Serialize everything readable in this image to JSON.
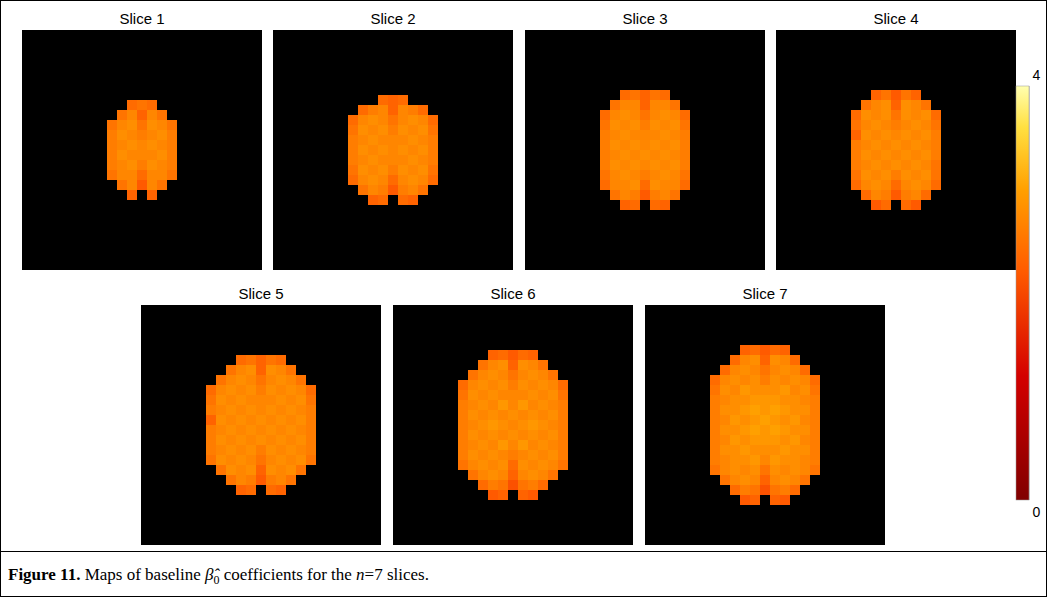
{
  "chart_data": {
    "type": "heatmap",
    "panels": [
      {
        "title": "Slice 1",
        "cells": [
          [
            null,
            null,
            2.4,
            2.5,
            2.4,
            null,
            null
          ],
          [
            null,
            2.5,
            2.7,
            2.3,
            2.7,
            2.5,
            null
          ],
          [
            2.5,
            2.7,
            2.8,
            2.5,
            2.8,
            2.7,
            2.5
          ],
          [
            2.6,
            2.8,
            2.7,
            2.6,
            2.7,
            2.8,
            2.6
          ],
          [
            2.6,
            2.7,
            2.8,
            2.7,
            2.8,
            2.7,
            2.6
          ],
          [
            2.6,
            2.8,
            2.7,
            2.7,
            2.7,
            2.8,
            2.6
          ],
          [
            2.6,
            2.7,
            2.8,
            2.6,
            2.8,
            2.7,
            2.6
          ],
          [
            2.5,
            2.7,
            2.7,
            2.4,
            2.7,
            2.7,
            2.5
          ],
          [
            null,
            2.5,
            2.7,
            2.2,
            2.7,
            2.5,
            null
          ],
          [
            null,
            null,
            2.3,
            null,
            2.3,
            null,
            null
          ]
        ]
      },
      {
        "title": "Slice 2",
        "cells": [
          [
            null,
            null,
            null,
            2.4,
            2.3,
            2.4,
            null,
            null,
            null
          ],
          [
            null,
            2.4,
            2.6,
            2.7,
            2.3,
            2.7,
            2.6,
            2.4,
            null
          ],
          [
            2.4,
            2.7,
            2.8,
            2.7,
            2.5,
            2.7,
            2.8,
            2.7,
            2.4
          ],
          [
            2.5,
            2.8,
            2.7,
            2.8,
            2.6,
            2.8,
            2.7,
            2.8,
            2.5
          ],
          [
            2.6,
            2.7,
            2.8,
            2.7,
            2.7,
            2.7,
            2.8,
            2.7,
            2.6
          ],
          [
            2.6,
            2.8,
            2.7,
            2.8,
            2.7,
            2.8,
            2.7,
            2.8,
            2.6
          ],
          [
            2.6,
            2.7,
            2.8,
            2.7,
            2.7,
            2.7,
            2.8,
            2.7,
            2.6
          ],
          [
            2.5,
            2.8,
            2.7,
            2.8,
            2.6,
            2.8,
            2.7,
            2.8,
            2.5
          ],
          [
            2.4,
            2.7,
            2.8,
            2.7,
            2.4,
            2.7,
            2.8,
            2.7,
            2.4
          ],
          [
            null,
            2.5,
            2.7,
            2.6,
            2.2,
            2.6,
            2.7,
            2.5,
            null
          ],
          [
            null,
            null,
            2.3,
            2.4,
            null,
            2.4,
            2.3,
            null,
            null
          ]
        ]
      },
      {
        "title": "Slice 3",
        "cells": [
          [
            null,
            null,
            2.4,
            2.5,
            2.3,
            2.5,
            2.4,
            null,
            null
          ],
          [
            null,
            2.5,
            2.7,
            2.7,
            2.3,
            2.7,
            2.7,
            2.5,
            null
          ],
          [
            2.4,
            2.7,
            2.8,
            2.7,
            2.5,
            2.7,
            2.8,
            2.7,
            2.4
          ],
          [
            2.5,
            2.8,
            2.7,
            2.8,
            2.6,
            2.8,
            2.7,
            2.8,
            2.5
          ],
          [
            2.6,
            2.7,
            2.8,
            2.7,
            2.7,
            2.7,
            2.8,
            2.7,
            2.6
          ],
          [
            2.6,
            2.8,
            2.7,
            2.8,
            2.7,
            2.8,
            2.7,
            2.8,
            2.6
          ],
          [
            2.6,
            2.7,
            2.8,
            2.7,
            2.8,
            2.7,
            2.8,
            2.7,
            2.6
          ],
          [
            2.6,
            2.8,
            2.7,
            2.8,
            2.7,
            2.8,
            2.7,
            2.8,
            2.6
          ],
          [
            2.5,
            2.7,
            2.8,
            2.7,
            2.6,
            2.7,
            2.8,
            2.7,
            2.5
          ],
          [
            2.4,
            2.7,
            2.7,
            2.8,
            2.4,
            2.8,
            2.7,
            2.7,
            2.4
          ],
          [
            null,
            2.5,
            2.7,
            2.6,
            2.2,
            2.6,
            2.7,
            2.5,
            null
          ],
          [
            null,
            null,
            2.3,
            2.4,
            null,
            2.4,
            2.3,
            null,
            null
          ]
        ]
      },
      {
        "title": "Slice 4",
        "cells": [
          [
            null,
            null,
            2.3,
            2.5,
            2.2,
            2.5,
            2.3,
            null,
            null
          ],
          [
            null,
            2.5,
            2.7,
            2.8,
            2.3,
            2.8,
            2.7,
            2.5,
            null
          ],
          [
            2.4,
            2.8,
            2.7,
            2.8,
            2.5,
            2.8,
            2.7,
            2.8,
            2.4
          ],
          [
            2.5,
            2.7,
            2.8,
            2.7,
            2.6,
            2.7,
            2.8,
            2.7,
            2.5
          ],
          [
            2.3,
            2.8,
            2.7,
            2.8,
            2.7,
            2.8,
            2.7,
            2.8,
            2.6
          ],
          [
            2.6,
            2.7,
            2.8,
            2.7,
            2.8,
            2.7,
            2.8,
            2.7,
            2.6
          ],
          [
            2.6,
            2.8,
            2.7,
            2.8,
            2.7,
            2.8,
            2.7,
            2.8,
            2.6
          ],
          [
            2.6,
            2.7,
            2.8,
            2.7,
            2.8,
            2.7,
            2.8,
            2.7,
            2.5
          ],
          [
            2.5,
            2.8,
            2.7,
            2.8,
            2.6,
            2.8,
            2.7,
            2.8,
            2.5
          ],
          [
            2.4,
            2.7,
            2.8,
            2.7,
            2.4,
            2.7,
            2.8,
            2.7,
            2.4
          ],
          [
            null,
            2.4,
            2.7,
            2.6,
            2.2,
            2.6,
            2.7,
            2.4,
            null
          ],
          [
            null,
            null,
            2.2,
            2.4,
            null,
            2.4,
            2.2,
            null,
            null
          ]
        ]
      },
      {
        "title": "Slice 5",
        "cells": [
          [
            null,
            null,
            null,
            2.4,
            2.5,
            2.3,
            2.5,
            2.4,
            null,
            null,
            null
          ],
          [
            null,
            null,
            2.5,
            2.7,
            2.8,
            2.3,
            2.8,
            2.7,
            2.5,
            null,
            null
          ],
          [
            null,
            2.5,
            2.7,
            2.8,
            2.7,
            2.5,
            2.7,
            2.8,
            2.7,
            2.5,
            null
          ],
          [
            2.4,
            2.7,
            2.8,
            2.7,
            2.8,
            2.6,
            2.8,
            2.7,
            2.8,
            2.7,
            2.4
          ],
          [
            2.5,
            2.8,
            2.7,
            2.8,
            2.7,
            2.7,
            2.7,
            2.8,
            2.7,
            2.8,
            2.5
          ],
          [
            2.6,
            2.7,
            2.8,
            2.7,
            2.8,
            2.7,
            2.8,
            2.7,
            2.8,
            2.7,
            2.6
          ],
          [
            2.3,
            2.8,
            2.7,
            2.8,
            2.7,
            2.8,
            2.7,
            2.8,
            2.7,
            2.8,
            2.6
          ],
          [
            2.6,
            2.7,
            2.8,
            2.7,
            2.8,
            2.7,
            2.8,
            2.7,
            2.8,
            2.7,
            2.6
          ],
          [
            2.6,
            2.8,
            2.7,
            2.8,
            2.7,
            2.8,
            2.7,
            2.8,
            2.7,
            2.8,
            2.6
          ],
          [
            2.6,
            2.7,
            2.8,
            2.7,
            2.8,
            2.6,
            2.8,
            2.7,
            2.8,
            2.7,
            2.6
          ],
          [
            2.5,
            2.8,
            2.7,
            2.8,
            2.7,
            2.5,
            2.7,
            2.8,
            2.7,
            2.8,
            2.5
          ],
          [
            null,
            2.5,
            2.8,
            2.7,
            2.8,
            2.3,
            2.8,
            2.7,
            2.8,
            2.5,
            null
          ],
          [
            null,
            null,
            2.5,
            2.7,
            2.6,
            2.2,
            2.6,
            2.7,
            2.5,
            null,
            null
          ],
          [
            null,
            null,
            null,
            2.3,
            2.4,
            null,
            2.4,
            2.3,
            null,
            null,
            null
          ]
        ]
      },
      {
        "title": "Slice 6",
        "cells": [
          [
            null,
            null,
            null,
            2.3,
            2.4,
            2.2,
            2.4,
            2.3,
            null,
            null,
            null
          ],
          [
            null,
            null,
            2.5,
            2.7,
            2.8,
            2.3,
            2.8,
            2.7,
            2.5,
            null,
            null
          ],
          [
            null,
            2.5,
            2.7,
            2.8,
            2.7,
            2.5,
            2.7,
            2.8,
            2.7,
            2.5,
            null
          ],
          [
            2.4,
            2.7,
            2.8,
            2.7,
            2.8,
            2.6,
            2.8,
            2.7,
            2.8,
            2.7,
            2.4
          ],
          [
            2.5,
            2.8,
            2.7,
            2.8,
            2.7,
            2.7,
            2.7,
            2.8,
            2.7,
            2.8,
            2.5
          ],
          [
            2.6,
            2.7,
            2.8,
            2.7,
            2.9,
            2.7,
            2.9,
            2.7,
            2.8,
            2.7,
            2.6
          ],
          [
            2.6,
            2.8,
            2.7,
            2.8,
            2.7,
            2.8,
            2.7,
            2.8,
            2.7,
            2.8,
            2.6
          ],
          [
            2.6,
            2.7,
            2.8,
            2.9,
            2.8,
            2.7,
            2.8,
            2.9,
            2.8,
            2.7,
            2.6
          ],
          [
            2.6,
            2.8,
            2.7,
            2.8,
            2.7,
            2.8,
            2.7,
            2.8,
            2.7,
            2.8,
            2.6
          ],
          [
            2.6,
            2.7,
            2.8,
            2.7,
            2.9,
            2.7,
            2.9,
            2.7,
            2.8,
            2.7,
            2.6
          ],
          [
            2.6,
            2.8,
            2.7,
            2.8,
            2.7,
            2.6,
            2.7,
            2.8,
            2.7,
            2.8,
            2.6
          ],
          [
            2.5,
            2.7,
            2.8,
            2.7,
            2.8,
            2.4,
            2.8,
            2.7,
            2.8,
            2.7,
            2.5
          ],
          [
            null,
            2.5,
            2.7,
            2.8,
            2.7,
            2.3,
            2.7,
            2.8,
            2.7,
            2.5,
            null
          ],
          [
            null,
            null,
            2.4,
            2.6,
            2.5,
            2.1,
            2.5,
            2.6,
            2.4,
            null,
            null
          ],
          [
            null,
            null,
            null,
            2.2,
            2.3,
            null,
            2.3,
            2.2,
            null,
            null,
            null
          ]
        ]
      },
      {
        "title": "Slice 7",
        "cells": [
          [
            null,
            null,
            null,
            2.3,
            2.4,
            2.2,
            2.4,
            2.3,
            null,
            null,
            null
          ],
          [
            null,
            null,
            2.4,
            2.7,
            2.8,
            2.3,
            2.8,
            2.7,
            2.4,
            null,
            null
          ],
          [
            null,
            2.4,
            2.7,
            2.8,
            2.7,
            2.5,
            2.7,
            2.8,
            2.7,
            2.4,
            null
          ],
          [
            2.4,
            2.7,
            2.8,
            2.7,
            2.8,
            2.6,
            2.8,
            2.7,
            2.8,
            2.7,
            2.4
          ],
          [
            2.5,
            2.8,
            2.7,
            2.9,
            2.8,
            2.8,
            2.8,
            2.9,
            2.7,
            2.8,
            2.5
          ],
          [
            2.6,
            2.7,
            2.8,
            2.8,
            2.9,
            2.9,
            2.9,
            2.8,
            2.8,
            2.7,
            2.6
          ],
          [
            2.6,
            2.8,
            2.8,
            2.9,
            3.0,
            2.9,
            3.0,
            2.9,
            2.8,
            2.8,
            2.6
          ],
          [
            2.6,
            2.7,
            2.9,
            2.8,
            2.9,
            3.0,
            2.9,
            2.8,
            2.9,
            2.7,
            2.6
          ],
          [
            2.6,
            2.8,
            2.8,
            2.9,
            3.0,
            2.9,
            3.0,
            2.9,
            2.8,
            2.8,
            2.6
          ],
          [
            2.6,
            2.7,
            2.9,
            2.8,
            2.9,
            2.9,
            2.9,
            2.8,
            2.9,
            2.7,
            2.6
          ],
          [
            2.6,
            2.8,
            2.8,
            2.9,
            2.8,
            2.8,
            2.8,
            2.9,
            2.8,
            2.8,
            2.6
          ],
          [
            2.6,
            2.7,
            2.8,
            2.8,
            2.9,
            2.7,
            2.9,
            2.8,
            2.8,
            2.7,
            2.6
          ],
          [
            2.5,
            2.7,
            2.8,
            2.7,
            2.8,
            2.5,
            2.8,
            2.7,
            2.8,
            2.7,
            2.5
          ],
          [
            null,
            2.5,
            2.7,
            2.8,
            2.7,
            2.3,
            2.7,
            2.8,
            2.7,
            2.5,
            null
          ],
          [
            null,
            null,
            2.4,
            2.6,
            2.5,
            2.1,
            2.5,
            2.6,
            2.4,
            null,
            null
          ],
          [
            null,
            null,
            null,
            2.2,
            2.3,
            null,
            2.3,
            2.2,
            null,
            null,
            null
          ]
        ]
      }
    ],
    "colorbar": {
      "range": [
        0,
        4
      ],
      "ticks": [
        0,
        4
      ]
    }
  },
  "caption": {
    "runs": [
      {
        "text": "Figure 11.",
        "style": "bold"
      },
      {
        "text": " Maps of baseline "
      },
      {
        "text": "β̂",
        "style": "italic"
      },
      {
        "text": "0",
        "style": "subscript"
      },
      {
        "text": " coefficients for the "
      },
      {
        "text": "n",
        "style": "italic"
      },
      {
        "text": "=7 slices."
      }
    ]
  }
}
